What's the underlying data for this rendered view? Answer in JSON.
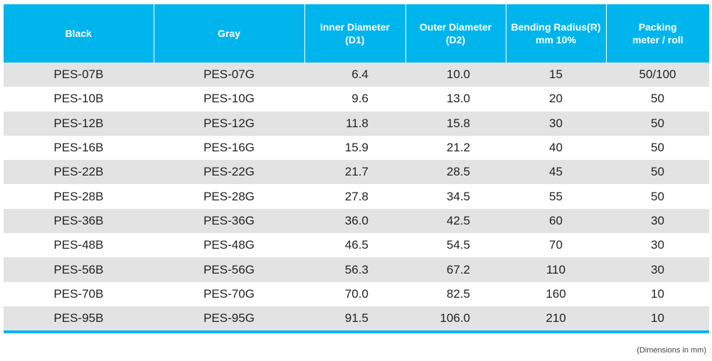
{
  "header": {
    "col_black": "Black",
    "col_gray": "Gray",
    "col_inner_l1": "Inner Diameter",
    "col_inner_l2": "(D1)",
    "col_outer_l1": "Outer Diameter",
    "col_outer_l2": "(D2)",
    "col_bend_l1": "Bending Radius(R)",
    "col_bend_l2": "mm 10%",
    "col_pack_l1": "Packing",
    "col_pack_l2": "meter / roll"
  },
  "rows": [
    {
      "black": "PES-07B",
      "gray": "PES-07G",
      "inner": "6.4",
      "outer": "10.0",
      "bend": "15",
      "pack": "50/100"
    },
    {
      "black": "PES-10B",
      "gray": "PES-10G",
      "inner": "9.6",
      "outer": "13.0",
      "bend": "20",
      "pack": "50"
    },
    {
      "black": "PES-12B",
      "gray": "PES-12G",
      "inner": "11.8",
      "outer": "15.8",
      "bend": "30",
      "pack": "50"
    },
    {
      "black": "PES-16B",
      "gray": "PES-16G",
      "inner": "15.9",
      "outer": "21.2",
      "bend": "40",
      "pack": "50"
    },
    {
      "black": "PES-22B",
      "gray": "PES-22G",
      "inner": "21.7",
      "outer": "28.5",
      "bend": "45",
      "pack": "50"
    },
    {
      "black": "PES-28B",
      "gray": "PES-28G",
      "inner": "27.8",
      "outer": "34.5",
      "bend": "55",
      "pack": "50"
    },
    {
      "black": "PES-36B",
      "gray": "PES-36G",
      "inner": "36.0",
      "outer": "42.5",
      "bend": "60",
      "pack": "30"
    },
    {
      "black": "PES-48B",
      "gray": "PES-48G",
      "inner": "46.5",
      "outer": "54.5",
      "bend": "70",
      "pack": "30"
    },
    {
      "black": "PES-56B",
      "gray": "PES-56G",
      "inner": "56.3",
      "outer": "67.2",
      "bend": "110",
      "pack": "30"
    },
    {
      "black": "PES-70B",
      "gray": "PES-70G",
      "inner": "70.0",
      "outer": "82.5",
      "bend": "160",
      "pack": "10"
    },
    {
      "black": "PES-95B",
      "gray": "PES-95G",
      "inner": "91.5",
      "outer": "106.0",
      "bend": "210",
      "pack": "10"
    }
  ],
  "footnote": "(Dimensions in mm)",
  "colors": {
    "header_bg": "#00b5ec",
    "stripe": "#e3e3e3"
  }
}
